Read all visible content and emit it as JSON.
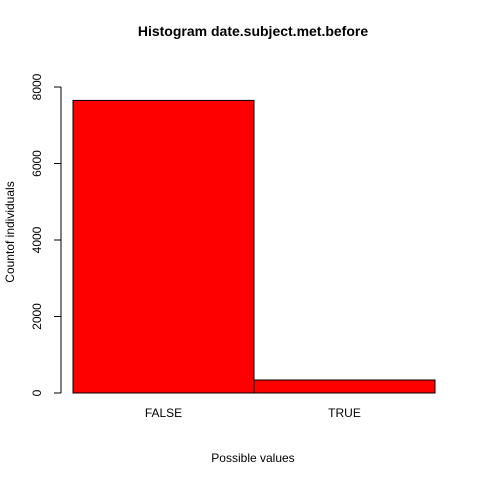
{
  "chart_data": {
    "type": "bar",
    "title": "Histogram date.subject.met.before",
    "xlabel": "Possible values",
    "ylabel": "Countof individuals",
    "categories": [
      "FALSE",
      "TRUE"
    ],
    "values": [
      7650,
      340
    ],
    "ylim": [
      0,
      8000
    ],
    "yticks": [
      0,
      2000,
      4000,
      6000,
      8000
    ],
    "bar_color": "#ff0000",
    "grid": false,
    "legend": "none"
  }
}
